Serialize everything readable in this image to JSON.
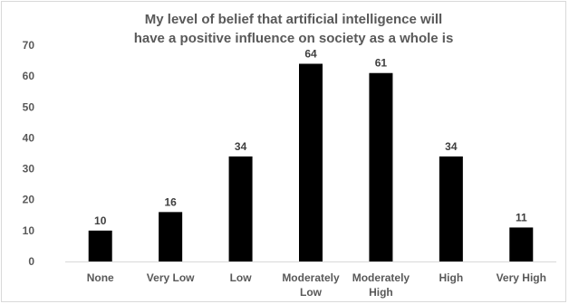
{
  "chart_data": {
    "type": "bar",
    "title": [
      "My level of belief that artificial intelligence will",
      "have a positive influence on society as a whole is"
    ],
    "categories": [
      [
        "None"
      ],
      [
        "Very Low"
      ],
      [
        "Low"
      ],
      [
        "Moderately",
        "Low"
      ],
      [
        "Moderately",
        "High"
      ],
      [
        "High"
      ],
      [
        "Very High"
      ]
    ],
    "values": [
      10,
      16,
      34,
      64,
      61,
      34,
      11
    ],
    "data_labels": [
      "10",
      "16",
      "34",
      "64",
      "61",
      "34",
      "11"
    ],
    "yticks": [
      "0",
      "10",
      "20",
      "30",
      "40",
      "50",
      "60",
      "70"
    ],
    "ylim": [
      0,
      70
    ],
    "grid": false,
    "bar_color": "#000000",
    "axis_color": "#d9d9d9",
    "text_color": "#595959"
  }
}
